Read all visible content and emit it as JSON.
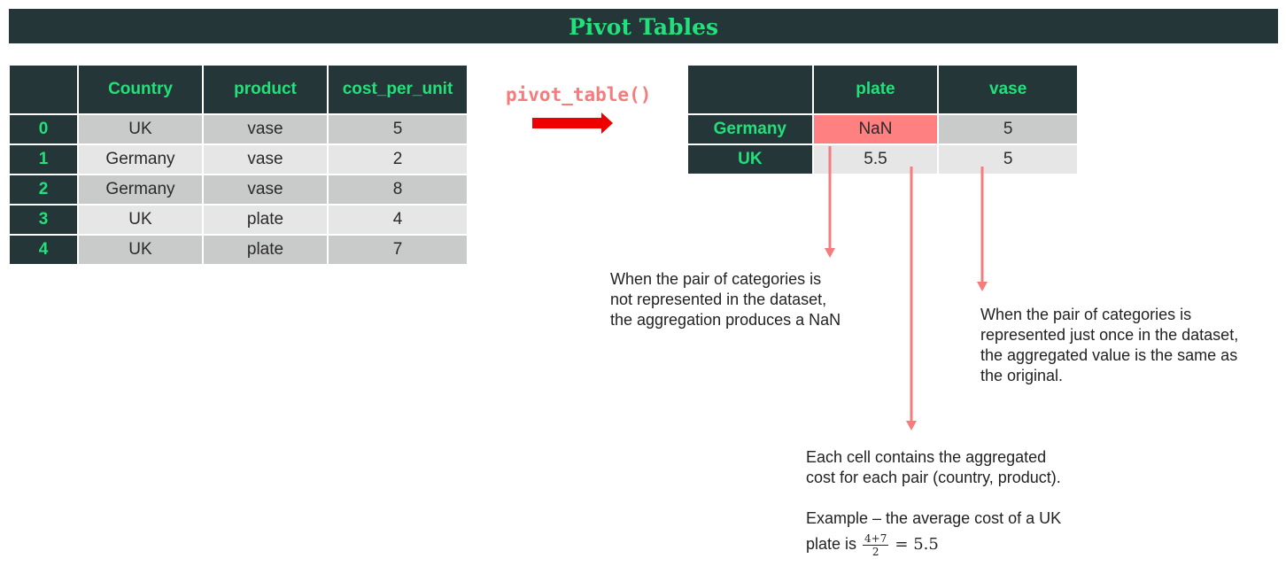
{
  "title": "Pivot Tables",
  "source_table": {
    "columns": [
      "",
      "Country",
      "product",
      "cost_per_unit"
    ],
    "rows": [
      {
        "index": "0",
        "country": "UK",
        "product": "vase",
        "cost": "5"
      },
      {
        "index": "1",
        "country": "Germany",
        "product": "vase",
        "cost": "2"
      },
      {
        "index": "2",
        "country": "Germany",
        "product": "vase",
        "cost": "8"
      },
      {
        "index": "3",
        "country": "UK",
        "product": "plate",
        "cost": "4"
      },
      {
        "index": "4",
        "country": "UK",
        "product": "plate",
        "cost": "7"
      }
    ]
  },
  "function_label": "pivot_table()",
  "pivot_table": {
    "columns": [
      "",
      "plate",
      "vase"
    ],
    "rows": [
      {
        "index": "Germany",
        "plate": "NaN",
        "vase": "5"
      },
      {
        "index": "UK",
        "plate": "5.5",
        "vase": "5"
      }
    ]
  },
  "notes": {
    "nan_note": "When the pair of categories is\nnot represented in the dataset,\nthe aggregation produces a NaN",
    "once_note": "When the pair of categories is\nrepresented just once in the dataset,\nthe aggregated value is the same as\nthe original.",
    "each_cell_note": "Each cell contains the aggregated\ncost for each pair (country, product).",
    "example_line1": "Example – the average cost of a UK",
    "example_line2_prefix": "plate is ",
    "example_numerator": "4+7",
    "example_denominator": "2",
    "example_result": "= 5.5"
  },
  "colors": {
    "header_bg": "#243638",
    "header_text": "#22e07a",
    "row_dark": "#c9cbcb",
    "row_light": "#e6e6e6",
    "nan_highlight": "#ff8080",
    "arrow_red": "#ee0000",
    "annotation_arrow": "#f47c7c"
  }
}
